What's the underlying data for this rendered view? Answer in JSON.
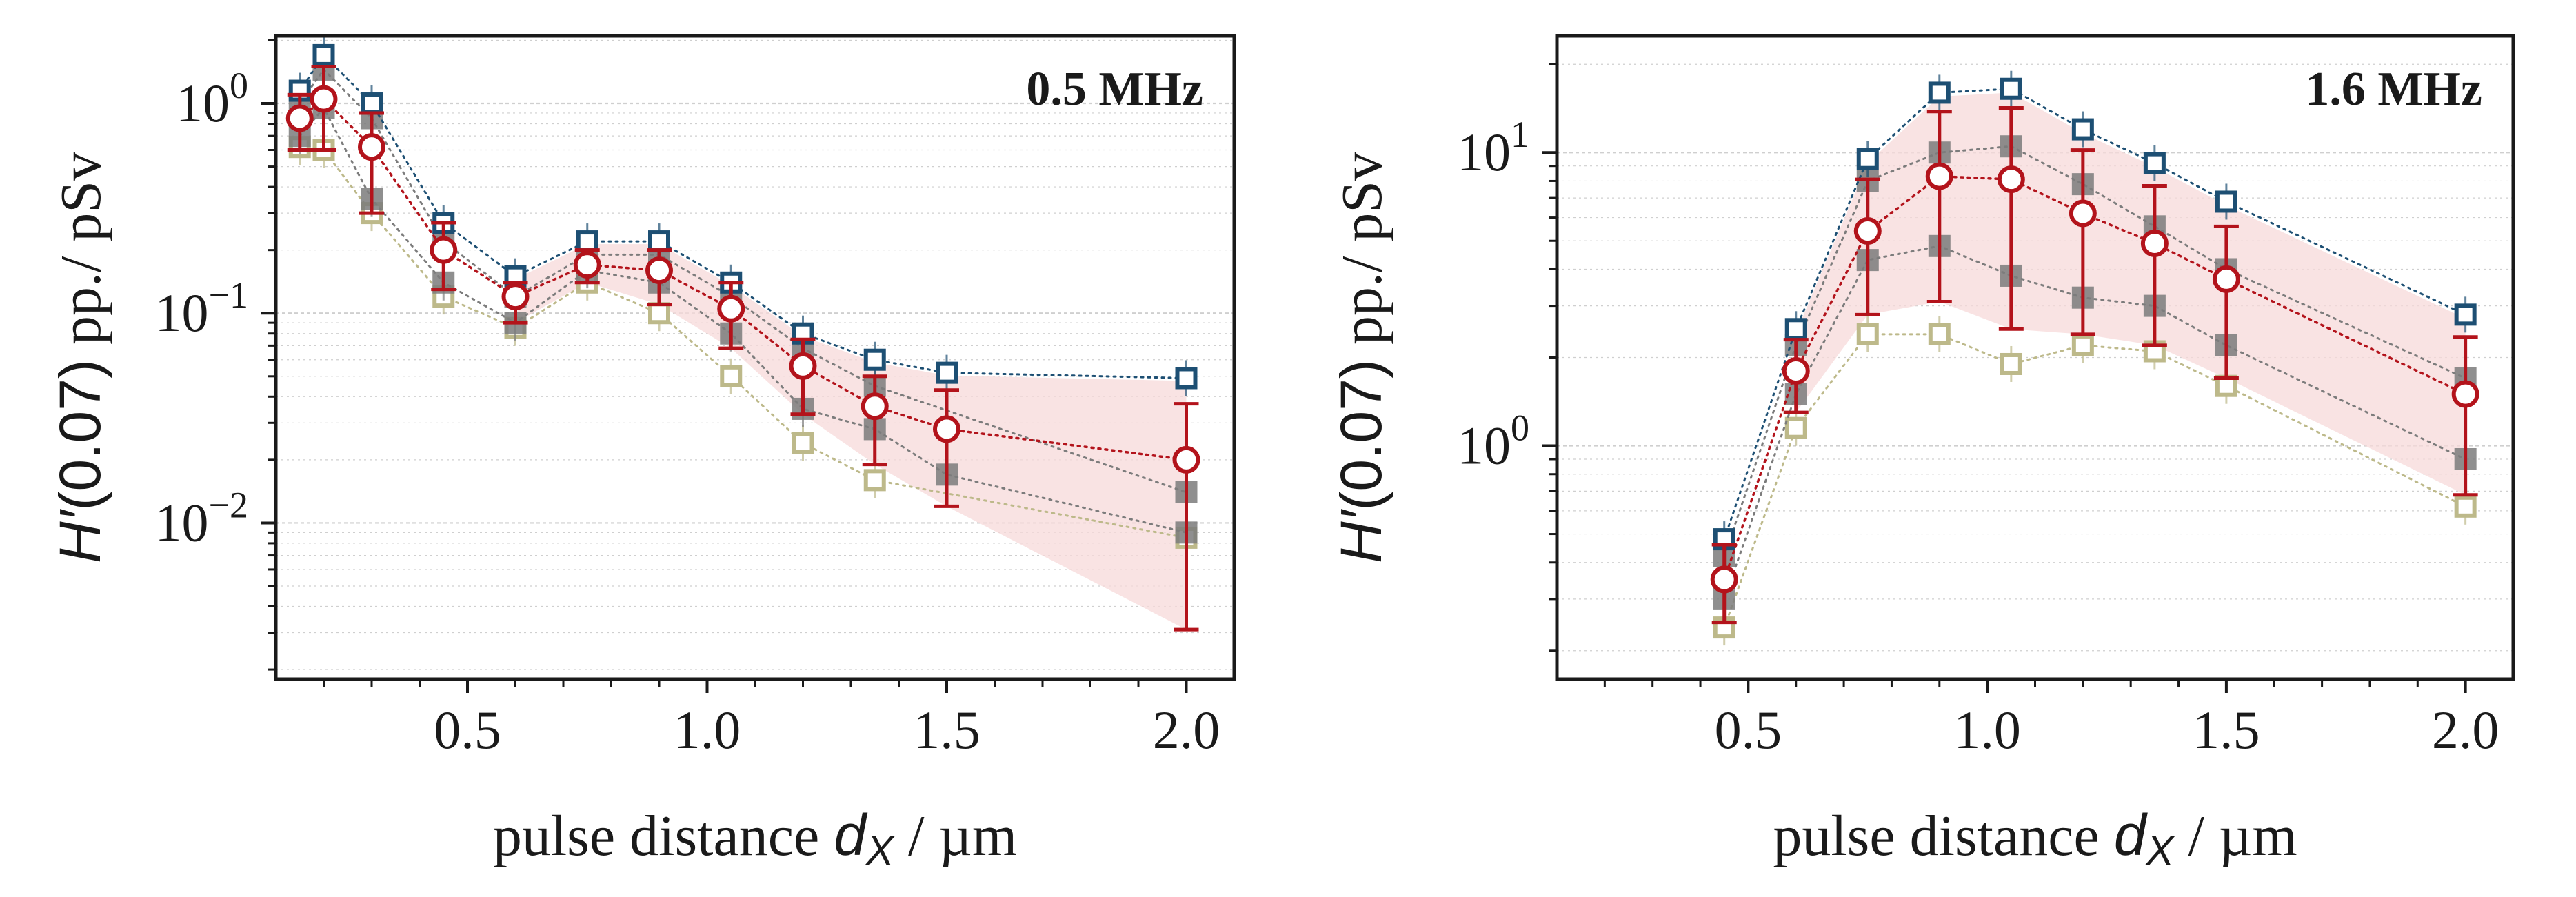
{
  "figure": {
    "colors": {
      "mean": "#b3131b",
      "band": "#f7d9d9",
      "upper": "#1d4f73",
      "mid": "#7c7c7c",
      "lower": "#bdb98a",
      "grid": "#cfcfcf",
      "axis": "#1a1a1a"
    }
  },
  "chart_data": [
    {
      "type": "line",
      "scale": "log-y",
      "annotation": "0.5 MHz",
      "xlabel_text": "pulse distance",
      "xlabel_symbol": "d",
      "xlabel_sub": "X",
      "xlabel_unit": " / µm",
      "ylabel_symbol": "H′",
      "ylabel_arg": "(0.07)",
      "ylabel_unit": " pp./ pSv",
      "xlim": [
        0.1,
        2.1
      ],
      "ylim": [
        0.0018,
        2.1
      ],
      "xticks": [
        0.5,
        1.0,
        1.5,
        2.0
      ],
      "xtick_labels": [
        "0.5",
        "1.0",
        "1.5",
        "2.0"
      ],
      "yticks": [
        {
          "base": "10",
          "exp": "0",
          "value": 1
        },
        {
          "base": "10",
          "exp": "−1",
          "value": 0.1
        },
        {
          "base": "10",
          "exp": "−2",
          "value": 0.01
        }
      ],
      "x": [
        0.15,
        0.2,
        0.3,
        0.45,
        0.6,
        0.75,
        0.9,
        1.05,
        1.2,
        1.35,
        1.5,
        2.0
      ],
      "series": [
        {
          "name": "upper",
          "marker": "square",
          "values": [
            1.15,
            1.7,
            1.0,
            0.27,
            0.15,
            0.22,
            0.22,
            0.14,
            0.08,
            0.06,
            0.052,
            0.049
          ]
        },
        {
          "name": "mid-high",
          "marker": "square",
          "values": [
            1.0,
            1.45,
            0.85,
            0.22,
            0.12,
            0.19,
            0.19,
            0.12,
            0.068,
            0.045,
            null,
            0.014
          ]
        },
        {
          "name": "mid-low",
          "marker": "square",
          "values": [
            0.7,
            0.95,
            0.35,
            0.14,
            0.09,
            0.16,
            0.14,
            0.08,
            0.035,
            0.028,
            0.017,
            0.009
          ]
        },
        {
          "name": "lower",
          "marker": "square",
          "values": [
            0.62,
            0.6,
            0.3,
            0.12,
            0.085,
            0.14,
            0.1,
            0.05,
            0.024,
            0.016,
            null,
            0.0085
          ]
        },
        {
          "name": "mean",
          "marker": "circle",
          "values": [
            0.85,
            1.05,
            0.62,
            0.2,
            0.12,
            0.17,
            0.16,
            0.105,
            0.056,
            0.036,
            0.028,
            0.02
          ],
          "err_low": [
            0.6,
            0.6,
            0.3,
            0.13,
            0.09,
            0.14,
            0.11,
            0.068,
            0.033,
            0.019,
            0.012,
            0.0031
          ],
          "err_high": [
            1.1,
            1.5,
            0.9,
            0.27,
            0.14,
            0.2,
            0.2,
            0.14,
            0.075,
            0.05,
            0.043,
            0.037
          ]
        }
      ]
    },
    {
      "type": "line",
      "scale": "log-y",
      "annotation": "1.6 MHz",
      "xlabel_text": "pulse distance",
      "xlabel_symbol": "d",
      "xlabel_sub": "X",
      "xlabel_unit": " / µm",
      "ylabel_symbol": "H′",
      "ylabel_arg": "(0.07)",
      "ylabel_unit": " pp./ pSv",
      "xlim": [
        0.1,
        2.1
      ],
      "ylim": [
        0.16,
        25
      ],
      "xticks": [
        0.5,
        1.0,
        1.5,
        2.0
      ],
      "xtick_labels": [
        "0.5",
        "1.0",
        "1.5",
        "2.0"
      ],
      "yticks": [
        {
          "base": "10",
          "exp": "1",
          "value": 10
        },
        {
          "base": "10",
          "exp": "0",
          "value": 1
        }
      ],
      "x": [
        0.45,
        0.6,
        0.75,
        0.9,
        1.05,
        1.2,
        1.35,
        1.5,
        2.0
      ],
      "series": [
        {
          "name": "upper",
          "marker": "square",
          "values": [
            0.48,
            2.5,
            9.5,
            16,
            16.5,
            12,
            9.2,
            6.8,
            2.8
          ]
        },
        {
          "name": "mid-high",
          "marker": "square",
          "values": [
            0.42,
            2.2,
            8.0,
            10.0,
            10.5,
            7.8,
            5.6,
            4.0,
            1.7
          ]
        },
        {
          "name": "mid-low",
          "marker": "square",
          "values": [
            0.3,
            1.5,
            4.3,
            4.8,
            3.8,
            3.2,
            3.0,
            2.2,
            0.9
          ]
        },
        {
          "name": "lower",
          "marker": "square",
          "values": [
            0.24,
            1.15,
            2.4,
            2.4,
            1.9,
            2.2,
            2.1,
            1.6,
            0.62
          ]
        },
        {
          "name": "mean",
          "marker": "circle",
          "values": [
            0.35,
            1.8,
            5.4,
            8.3,
            8.1,
            6.2,
            4.9,
            3.7,
            1.5
          ],
          "err_low": [
            0.25,
            1.3,
            2.8,
            3.1,
            2.5,
            2.4,
            2.2,
            1.7,
            0.68
          ],
          "err_high": [
            0.46,
            2.3,
            8.1,
            13.8,
            14.2,
            10.2,
            7.7,
            5.6,
            2.35
          ]
        }
      ]
    }
  ]
}
